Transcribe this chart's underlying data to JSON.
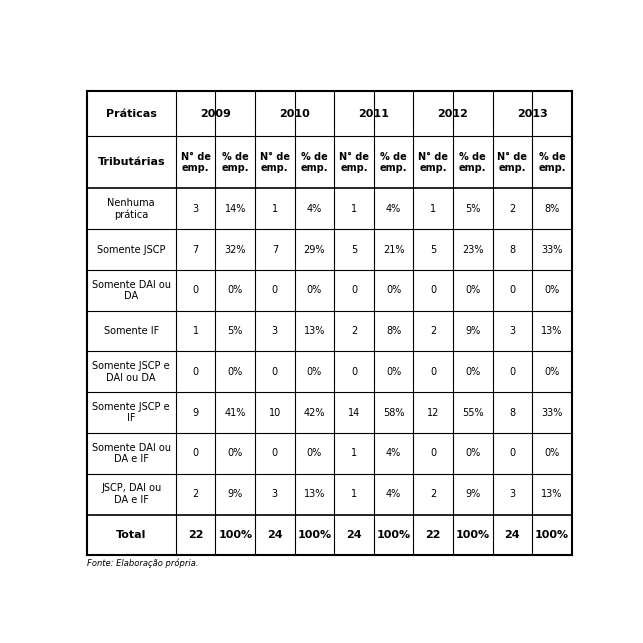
{
  "footer": "Fonte: Elaboração própria.",
  "years": [
    "2009",
    "2010",
    "2011",
    "2012",
    "2013"
  ],
  "rows": [
    [
      "Nenhuma\nprática",
      "3",
      "14%",
      "1",
      "4%",
      "1",
      "4%",
      "1",
      "5%",
      "2",
      "8%"
    ],
    [
      "Somente JSCP",
      "7",
      "32%",
      "7",
      "29%",
      "5",
      "21%",
      "5",
      "23%",
      "8",
      "33%"
    ],
    [
      "Somente DAI ou\nDA",
      "0",
      "0%",
      "0",
      "0%",
      "0",
      "0%",
      "0",
      "0%",
      "0",
      "0%"
    ],
    [
      "Somente IF",
      "1",
      "5%",
      "3",
      "13%",
      "2",
      "8%",
      "2",
      "9%",
      "3",
      "13%"
    ],
    [
      "Somente JSCP e\nDAI ou DA",
      "0",
      "0%",
      "0",
      "0%",
      "0",
      "0%",
      "0",
      "0%",
      "0",
      "0%"
    ],
    [
      "Somente JSCP e\nIF",
      "9",
      "41%",
      "10",
      "42%",
      "14",
      "58%",
      "12",
      "55%",
      "8",
      "33%"
    ],
    [
      "Somente DAI ou\nDA e IF",
      "0",
      "0%",
      "0",
      "0%",
      "1",
      "4%",
      "0",
      "0%",
      "0",
      "0%"
    ],
    [
      "JSCP, DAI ou\nDA e IF",
      "2",
      "9%",
      "3",
      "13%",
      "1",
      "4%",
      "2",
      "9%",
      "3",
      "13%"
    ]
  ],
  "total_row": [
    "Total",
    "22",
    "100%",
    "24",
    "100%",
    "24",
    "100%",
    "22",
    "100%",
    "24",
    "100%"
  ],
  "bg_color": "#ffffff",
  "line_color": "#000000",
  "text_color": "#000000",
  "font_size": 7.0,
  "header_font_size": 8.0,
  "col_widths_rel": [
    1.85,
    0.82,
    0.82,
    0.82,
    0.82,
    0.82,
    0.82,
    0.82,
    0.82,
    0.82,
    0.82
  ]
}
